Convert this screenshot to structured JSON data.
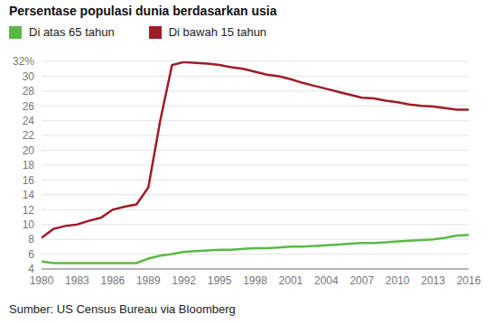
{
  "chart_data": {
    "type": "line",
    "title": "Persentase populasi dunia berdasarkan usia",
    "source": "Sumber: US Census Bureau via Bloomberg",
    "x": [
      1980,
      1981,
      1982,
      1983,
      1984,
      1985,
      1986,
      1987,
      1988,
      1989,
      1990,
      1991,
      1992,
      1993,
      1994,
      1995,
      1996,
      1997,
      1998,
      1999,
      2000,
      2001,
      2002,
      2003,
      2004,
      2005,
      2006,
      2007,
      2008,
      2009,
      2010,
      2011,
      2012,
      2013,
      2014,
      2015,
      2016
    ],
    "series": [
      {
        "name": "Di atas 65 tahun",
        "color": "#5ab946",
        "values": [
          5.0,
          4.8,
          4.8,
          4.8,
          4.8,
          4.8,
          4.8,
          4.8,
          4.8,
          5.4,
          5.8,
          6.0,
          6.3,
          6.4,
          6.5,
          6.6,
          6.6,
          6.7,
          6.8,
          6.8,
          6.9,
          7.0,
          7.0,
          7.1,
          7.2,
          7.3,
          7.4,
          7.5,
          7.5,
          7.6,
          7.7,
          7.8,
          7.9,
          8.0,
          8.2,
          8.5,
          8.6
        ]
      },
      {
        "name": "Di bawah 15 tahun",
        "color": "#a01c26",
        "values": [
          8.2,
          9.4,
          9.8,
          10.0,
          10.5,
          10.9,
          12.0,
          12.4,
          12.7,
          15.0,
          24.0,
          31.5,
          31.9,
          31.8,
          31.7,
          31.5,
          31.2,
          31.0,
          30.6,
          30.2,
          30.0,
          29.6,
          29.1,
          28.7,
          28.3,
          27.9,
          27.5,
          27.1,
          27.0,
          26.7,
          26.5,
          26.2,
          26.0,
          25.9,
          25.7,
          25.5,
          25.5
        ]
      }
    ],
    "xlim": [
      1980,
      2016
    ],
    "xticks": [
      1980,
      1983,
      1986,
      1989,
      1992,
      1995,
      1998,
      2001,
      2004,
      2007,
      2010,
      2013,
      2016
    ],
    "ylim": [
      4,
      32
    ],
    "yticks": [
      4,
      6,
      8,
      10,
      12,
      14,
      16,
      18,
      20,
      22,
      24,
      26,
      28,
      30,
      {
        "value": 32,
        "label": "32%"
      }
    ],
    "grid": true,
    "legend": "top-left"
  }
}
